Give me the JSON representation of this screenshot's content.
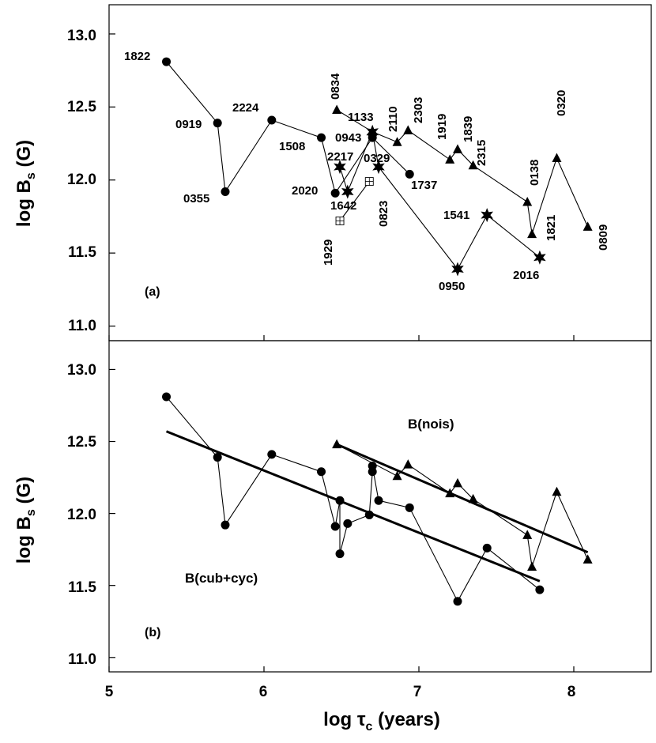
{
  "chart_data": [
    {
      "panel": "a",
      "type": "line",
      "panel_label": "(a)",
      "ylabel": "log B",
      "ylabel_sub": "s",
      "ylabel_unit": " (G)",
      "xlim": [
        5,
        8.5
      ],
      "ylim": [
        10.9,
        13.2
      ],
      "yticks": [
        "11.0",
        "11.5",
        "12.0",
        "12.5",
        "13.0"
      ],
      "series": [
        {
          "name": "circles",
          "marker": "circle",
          "points": [
            {
              "label": "1822",
              "x": 5.37,
              "y": 12.81
            },
            {
              "label": "0919",
              "x": 5.7,
              "y": 12.39
            },
            {
              "label": "0355",
              "x": 5.75,
              "y": 11.92
            },
            {
              "label": "2224",
              "x": 6.05,
              "y": 12.41
            },
            {
              "label": "1508",
              "x": 6.37,
              "y": 12.29
            },
            {
              "label": "2020",
              "x": 6.46,
              "y": 11.91
            },
            {
              "label": "0943",
              "x": 6.7,
              "y": 12.29
            },
            {
              "label": "1737",
              "x": 6.94,
              "y": 12.04
            }
          ]
        },
        {
          "name": "triangles",
          "marker": "triangle",
          "points": [
            {
              "label": "0834",
              "x": 6.47,
              "y": 12.48
            },
            {
              "label": "1133",
              "x": 6.7,
              "y": 12.33
            },
            {
              "label": "2110",
              "x": 6.86,
              "y": 12.26
            },
            {
              "label": "2303",
              "x": 6.93,
              "y": 12.34
            },
            {
              "label": "1919",
              "x": 7.2,
              "y": 12.14
            },
            {
              "label": "1839",
              "x": 7.25,
              "y": 12.21
            },
            {
              "label": "2315",
              "x": 7.35,
              "y": 12.1
            },
            {
              "label": "0138",
              "x": 7.7,
              "y": 11.85
            },
            {
              "label": "1821",
              "x": 7.73,
              "y": 11.63
            },
            {
              "label": "0320",
              "x": 7.89,
              "y": 12.15
            },
            {
              "label": "0809",
              "x": 8.09,
              "y": 11.68
            }
          ]
        },
        {
          "name": "stars",
          "marker": "star",
          "points": [
            {
              "label": "2217",
              "x": 6.49,
              "y": 12.09
            },
            {
              "label": "1642",
              "x": 6.54,
              "y": 11.92
            },
            {
              "label": "",
              "x": 6.7,
              "y": 12.33
            },
            {
              "label": "0329",
              "x": 6.74,
              "y": 12.09
            },
            {
              "label": "0950",
              "x": 7.25,
              "y": 11.39
            },
            {
              "label": "1541",
              "x": 7.44,
              "y": 11.76
            },
            {
              "label": "2016",
              "x": 7.78,
              "y": 11.47
            }
          ]
        },
        {
          "name": "squares",
          "marker": "square",
          "points": [
            {
              "label": "1929",
              "x": 6.49,
              "y": 11.72
            },
            {
              "label": "0823",
              "x": 6.68,
              "y": 11.99
            }
          ]
        }
      ]
    },
    {
      "panel": "b",
      "type": "line",
      "panel_label": "(b)",
      "ylabel": "log B",
      "ylabel_sub": "s",
      "ylabel_unit": " (G)",
      "xlabel": "log τ",
      "xlabel_sub": "c",
      "xlabel_unit": " (years)",
      "xlim": [
        5,
        8.5
      ],
      "ylim": [
        10.9,
        13.2
      ],
      "xticks": [
        "5",
        "6",
        "7",
        "8"
      ],
      "yticks": [
        "11.0",
        "11.5",
        "12.0",
        "12.5",
        "13.0"
      ],
      "series": [
        {
          "name": "B(cub+cyc)",
          "marker": "circle",
          "x": [
            5.37,
            5.7,
            5.75,
            6.05,
            6.37,
            6.46,
            6.49,
            6.49,
            6.54,
            6.68,
            6.7,
            6.7,
            6.74,
            6.94,
            7.25,
            7.44,
            7.78
          ],
          "y": [
            12.81,
            12.39,
            11.92,
            12.41,
            12.29,
            11.91,
            12.09,
            11.72,
            11.93,
            11.99,
            12.29,
            12.33,
            12.09,
            12.04,
            11.39,
            11.76,
            11.47
          ],
          "fit": {
            "x": [
              5.37,
              7.78
            ],
            "y": [
              12.57,
              11.53
            ]
          }
        },
        {
          "name": "B(nois)",
          "marker": "triangle",
          "x": [
            6.47,
            6.86,
            6.93,
            7.2,
            7.25,
            7.35,
            7.7,
            7.73,
            7.89,
            8.09
          ],
          "y": [
            12.48,
            12.26,
            12.34,
            12.14,
            12.21,
            12.1,
            11.85,
            11.63,
            12.15,
            11.68
          ],
          "fit": {
            "x": [
              6.47,
              8.09
            ],
            "y": [
              12.48,
              11.73
            ]
          }
        }
      ]
    }
  ]
}
